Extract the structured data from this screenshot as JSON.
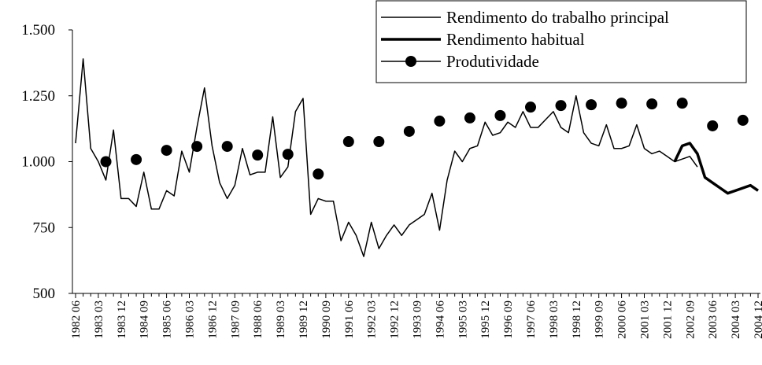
{
  "chart_data": {
    "type": "line",
    "categories": [
      "1982 06",
      null,
      null,
      "1983 03",
      null,
      null,
      "1983 12",
      null,
      null,
      "1984 09",
      null,
      null,
      "1985 06",
      null,
      null,
      "1986 03",
      null,
      null,
      "1986 12",
      null,
      null,
      "1987 09",
      null,
      null,
      "1988 06",
      null,
      null,
      "1989 03",
      null,
      null,
      "1989 12",
      null,
      null,
      "1990 09",
      null,
      null,
      "1991 06",
      null,
      null,
      "1992 03",
      null,
      null,
      "1992 12",
      null,
      null,
      "1993 09",
      null,
      null,
      "1994 06",
      null,
      null,
      "1995 03",
      null,
      null,
      "1995 12",
      null,
      null,
      "1996 09",
      null,
      null,
      "1997 06",
      null,
      null,
      "1998 03",
      null,
      null,
      "1998 12",
      null,
      null,
      "1999 09",
      null,
      null,
      "2000 06",
      null,
      null,
      "2001 03",
      null,
      null,
      "2001 12",
      null,
      null,
      "2002 09",
      null,
      null,
      "2003 06",
      null,
      null,
      "2004 03",
      null,
      null,
      "2004 12"
    ],
    "series": [
      {
        "name": "Rendimento do trabalho principal",
        "color": "#000000",
        "line_width": 1.5,
        "marker": "none",
        "values": [
          1070,
          1390,
          1050,
          1000,
          930,
          1120,
          860,
          860,
          830,
          960,
          820,
          820,
          890,
          870,
          1040,
          960,
          1130,
          1280,
          1060,
          920,
          860,
          910,
          1050,
          950,
          960,
          960,
          1170,
          940,
          980,
          1190,
          1240,
          800,
          860,
          850,
          850,
          700,
          770,
          720,
          640,
          770,
          670,
          720,
          760,
          720,
          760,
          780,
          800,
          880,
          740,
          930,
          1040,
          1000,
          1050,
          1060,
          1150,
          1100,
          1110,
          1150,
          1130,
          1190,
          1130,
          1130,
          1160,
          1190,
          1130,
          1110,
          1250,
          1110,
          1070,
          1060,
          1140,
          1050,
          1050,
          1060,
          1140,
          1050,
          1030,
          1040,
          1020,
          1000,
          1010,
          1020,
          980,
          null,
          null,
          null,
          null,
          null,
          null,
          null,
          null
        ]
      },
      {
        "name": "Rendimento habitual",
        "color": "#000000",
        "line_width": 3.5,
        "marker": "none",
        "values": [
          null,
          null,
          null,
          null,
          null,
          null,
          null,
          null,
          null,
          null,
          null,
          null,
          null,
          null,
          null,
          null,
          null,
          null,
          null,
          null,
          null,
          null,
          null,
          null,
          null,
          null,
          null,
          null,
          null,
          null,
          null,
          null,
          null,
          null,
          null,
          null,
          null,
          null,
          null,
          null,
          null,
          null,
          null,
          null,
          null,
          null,
          null,
          null,
          null,
          null,
          null,
          null,
          null,
          null,
          null,
          null,
          null,
          null,
          null,
          null,
          null,
          null,
          null,
          null,
          null,
          null,
          null,
          null,
          null,
          null,
          null,
          null,
          null,
          null,
          null,
          null,
          null,
          null,
          null,
          1000,
          1060,
          1070,
          1030,
          940,
          920,
          900,
          880,
          890,
          900,
          910,
          890
        ]
      },
      {
        "name": "Produtividade",
        "color": "#000000",
        "line_width": 0,
        "marker": "circle",
        "values": [
          null,
          null,
          null,
          null,
          1000,
          null,
          null,
          null,
          1008,
          null,
          null,
          null,
          1043,
          null,
          null,
          null,
          1058,
          null,
          null,
          null,
          1058,
          null,
          null,
          null,
          1025,
          null,
          null,
          null,
          1028,
          null,
          null,
          null,
          953,
          null,
          null,
          null,
          1076,
          null,
          null,
          null,
          1076,
          null,
          null,
          null,
          1115,
          null,
          null,
          null,
          1154,
          null,
          null,
          null,
          1166,
          null,
          null,
          null,
          1175,
          null,
          null,
          null,
          1207,
          null,
          null,
          null,
          1213,
          null,
          null,
          null,
          1216,
          null,
          null,
          null,
          1222,
          null,
          null,
          null,
          1219,
          null,
          null,
          null,
          1222,
          null,
          null,
          null,
          1136,
          null,
          null,
          null,
          1157,
          null,
          null
        ]
      }
    ],
    "ylim": [
      500,
      1500
    ],
    "yticks": [
      500,
      750,
      {
        "value": 1000,
        "label": "1.000"
      },
      {
        "value": 1250,
        "label": "1.250"
      },
      {
        "value": 1500,
        "label": "1.500"
      }
    ],
    "grid": false,
    "legend": "top-right"
  }
}
